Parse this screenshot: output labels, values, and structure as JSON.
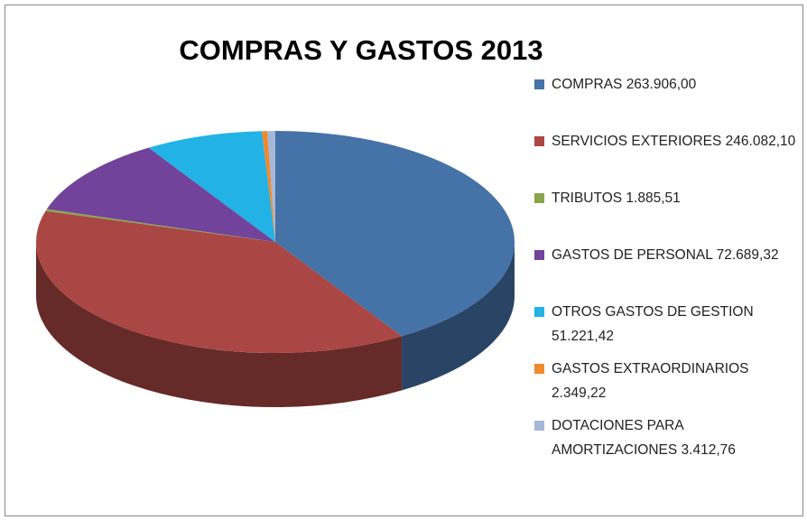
{
  "chart_data": {
    "type": "pie",
    "title": "COMPRAS Y GASTOS 2013",
    "categories": [
      "COMPRAS",
      "SERVICIOS EXTERIORES",
      "TRIBUTOS",
      "GASTOS DE PERSONAL",
      "OTROS GASTOS DE GESTION",
      "GASTOS EXTRAORDINARIOS",
      "DOTACIONES PARA AMORTIZACIONES"
    ],
    "values": [
      263906.0,
      246082.1,
      1885.51,
      72689.32,
      51221.42,
      2349.22,
      3412.76
    ],
    "value_labels": [
      "263.906,00",
      "246.082,10",
      "1.885,51",
      "72.689,32",
      "51.221,42",
      "2.349,22",
      "3.412,76"
    ],
    "colors": [
      "#4572a7",
      "#aa4643",
      "#89a54e",
      "#71439a",
      "#22b2e6",
      "#ef8a2f",
      "#a6b8d8"
    ],
    "three_d": true,
    "legend": "right"
  }
}
